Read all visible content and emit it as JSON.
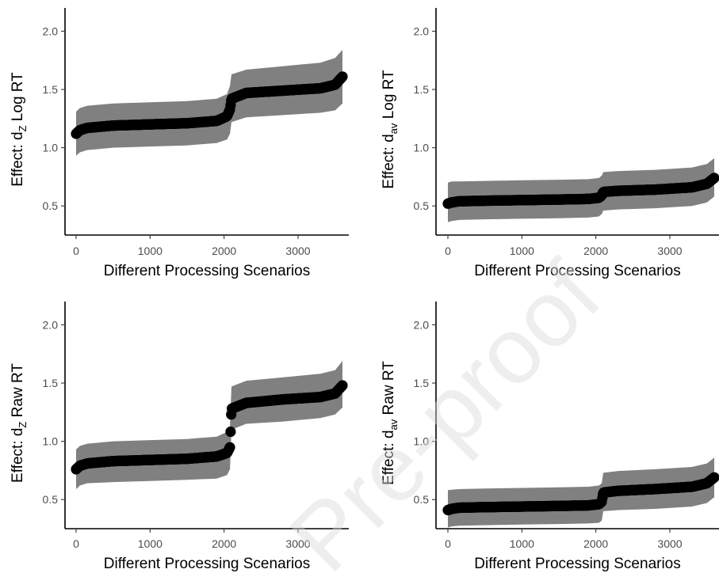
{
  "watermark": "Pre-proof",
  "colors": {
    "band": "#808080",
    "points": "#000000",
    "axis": "#000000",
    "ticks": "#4d4d4d",
    "watermark": "#d9d9d9"
  },
  "chart_data": [
    {
      "type": "line",
      "panel": "top-left",
      "ylabel_prefix": "Effect: d",
      "ylabel_sub": "Z",
      "ylabel_suffix": " Log RT",
      "xlabel": "Different Processing Scenarios",
      "xlim": [
        0,
        3600
      ],
      "ylim": [
        0.25,
        2.2
      ],
      "xticks": [
        0,
        1000,
        2000,
        3000
      ],
      "xtick_labels": [
        "0",
        "1000",
        "2000",
        "3000"
      ],
      "yticks": [
        0.5,
        1.0,
        1.5,
        2.0
      ],
      "ytick_labels": [
        "0.5",
        "1.0",
        "1.5",
        "2.0"
      ],
      "grid": false,
      "series": [
        {
          "x": [
            0,
            50,
            150,
            500,
            1000,
            1500,
            1900,
            2040,
            2080,
            2100,
            2300,
            2800,
            3300,
            3500,
            3600
          ],
          "y": [
            1.12,
            1.15,
            1.17,
            1.19,
            1.2,
            1.21,
            1.23,
            1.27,
            1.33,
            1.42,
            1.47,
            1.49,
            1.51,
            1.54,
            1.61
          ]
        },
        {
          "x": [
            0,
            50,
            150,
            500,
            1000,
            1500,
            1900,
            2040,
            2080,
            2100,
            2300,
            2800,
            3300,
            3500,
            3600
          ],
          "y": [
            0.93,
            0.96,
            0.98,
            1.0,
            1.01,
            1.02,
            1.04,
            1.07,
            1.12,
            1.22,
            1.26,
            1.28,
            1.3,
            1.32,
            1.38
          ]
        },
        {
          "x": [
            0,
            50,
            150,
            500,
            1000,
            1500,
            1900,
            2040,
            2080,
            2100,
            2300,
            2800,
            3300,
            3500,
            3600
          ],
          "y": [
            1.31,
            1.34,
            1.36,
            1.38,
            1.39,
            1.4,
            1.42,
            1.46,
            1.53,
            1.63,
            1.67,
            1.7,
            1.73,
            1.77,
            1.84
          ]
        }
      ]
    },
    {
      "type": "line",
      "panel": "top-right",
      "ylabel_prefix": "Effect: d",
      "ylabel_sub": "av",
      "ylabel_suffix": " Log RT",
      "xlabel": "Different Processing Scenarios",
      "xlim": [
        0,
        3600
      ],
      "ylim": [
        0.25,
        2.2
      ],
      "xticks": [
        0,
        1000,
        2000,
        3000
      ],
      "xtick_labels": [
        "0",
        "1000",
        "2000",
        "3000"
      ],
      "yticks": [
        0.5,
        1.0,
        1.5,
        2.0
      ],
      "ytick_labels": [
        "0.5",
        "1.0",
        "1.5",
        "2.0"
      ],
      "grid": false,
      "series": [
        {
          "x": [
            0,
            50,
            150,
            500,
            1000,
            1500,
            1900,
            2040,
            2080,
            2100,
            2300,
            2800,
            3300,
            3500,
            3600
          ],
          "y": [
            0.52,
            0.53,
            0.54,
            0.545,
            0.55,
            0.555,
            0.56,
            0.57,
            0.59,
            0.62,
            0.63,
            0.64,
            0.66,
            0.69,
            0.74
          ]
        },
        {
          "x": [
            0,
            50,
            150,
            500,
            1000,
            1500,
            1900,
            2040,
            2080,
            2100,
            2300,
            2800,
            3300,
            3500,
            3600
          ],
          "y": [
            0.36,
            0.37,
            0.38,
            0.385,
            0.39,
            0.395,
            0.4,
            0.41,
            0.43,
            0.46,
            0.47,
            0.48,
            0.5,
            0.53,
            0.58
          ]
        },
        {
          "x": [
            0,
            50,
            150,
            500,
            1000,
            1500,
            1900,
            2040,
            2080,
            2100,
            2300,
            2800,
            3300,
            3500,
            3600
          ],
          "y": [
            0.7,
            0.71,
            0.71,
            0.715,
            0.72,
            0.725,
            0.73,
            0.74,
            0.76,
            0.79,
            0.8,
            0.81,
            0.83,
            0.86,
            0.91
          ]
        }
      ]
    },
    {
      "type": "line",
      "panel": "bottom-left",
      "ylabel_prefix": "Effect: d",
      "ylabel_sub": "Z",
      "ylabel_suffix": " Raw RT",
      "xlabel": "Different Processing Scenarios",
      "xlim": [
        0,
        3600
      ],
      "ylim": [
        0.25,
        2.2
      ],
      "xticks": [
        0,
        1000,
        2000,
        3000
      ],
      "xtick_labels": [
        "0",
        "1000",
        "2000",
        "3000"
      ],
      "yticks": [
        0.5,
        1.0,
        1.5,
        2.0
      ],
      "ytick_labels": [
        "0.5",
        "1.0",
        "1.5",
        "2.0"
      ],
      "grid": false,
      "series": [
        {
          "x": [
            0,
            50,
            150,
            500,
            1000,
            1500,
            1900,
            2040,
            2080,
            2100,
            2300,
            2800,
            3300,
            3500,
            3600
          ],
          "y": [
            0.76,
            0.79,
            0.81,
            0.83,
            0.84,
            0.85,
            0.87,
            0.9,
            0.95,
            1.28,
            1.33,
            1.36,
            1.38,
            1.41,
            1.48
          ]
        },
        {
          "x": [
            0,
            50,
            150,
            500,
            1000,
            1500,
            1900,
            2040,
            2080,
            2100,
            2300,
            2800,
            3300,
            3500,
            3600
          ],
          "y": [
            0.59,
            0.62,
            0.64,
            0.65,
            0.66,
            0.67,
            0.68,
            0.71,
            0.76,
            1.1,
            1.15,
            1.17,
            1.2,
            1.23,
            1.29
          ]
        },
        {
          "x": [
            0,
            50,
            150,
            500,
            1000,
            1500,
            1900,
            2040,
            2080,
            2100,
            2300,
            2800,
            3300,
            3500,
            3600
          ],
          "y": [
            0.93,
            0.96,
            0.98,
            1.0,
            1.01,
            1.02,
            1.04,
            1.08,
            1.13,
            1.47,
            1.52,
            1.55,
            1.58,
            1.61,
            1.69
          ]
        }
      ]
    },
    {
      "type": "line",
      "panel": "bottom-right",
      "ylabel_prefix": "Effect: d",
      "ylabel_sub": "av",
      "ylabel_suffix": " Raw RT",
      "xlabel": "Different Processing Scenarios",
      "xlim": [
        0,
        3600
      ],
      "ylim": [
        0.25,
        2.2
      ],
      "xticks": [
        0,
        1000,
        2000,
        3000
      ],
      "xtick_labels": [
        "0",
        "1000",
        "2000",
        "3000"
      ],
      "yticks": [
        0.5,
        1.0,
        1.5,
        2.0
      ],
      "ytick_labels": [
        "0.5",
        "1.0",
        "1.5",
        "2.0"
      ],
      "grid": false,
      "series": [
        {
          "x": [
            0,
            50,
            150,
            500,
            1000,
            1500,
            1900,
            2040,
            2080,
            2100,
            2300,
            2800,
            3300,
            3500,
            3600
          ],
          "y": [
            0.41,
            0.42,
            0.43,
            0.435,
            0.44,
            0.445,
            0.45,
            0.46,
            0.48,
            0.56,
            0.575,
            0.59,
            0.61,
            0.64,
            0.69
          ]
        },
        {
          "x": [
            0,
            50,
            150,
            500,
            1000,
            1500,
            1900,
            2040,
            2080,
            2100,
            2300,
            2800,
            3300,
            3500,
            3600
          ],
          "y": [
            0.26,
            0.27,
            0.275,
            0.28,
            0.285,
            0.29,
            0.295,
            0.3,
            0.32,
            0.4,
            0.41,
            0.42,
            0.44,
            0.47,
            0.52
          ]
        },
        {
          "x": [
            0,
            50,
            150,
            500,
            1000,
            1500,
            1900,
            2040,
            2080,
            2100,
            2300,
            2800,
            3300,
            3500,
            3600
          ],
          "y": [
            0.58,
            0.585,
            0.59,
            0.595,
            0.6,
            0.605,
            0.61,
            0.62,
            0.64,
            0.73,
            0.745,
            0.76,
            0.78,
            0.81,
            0.86
          ]
        }
      ]
    }
  ]
}
